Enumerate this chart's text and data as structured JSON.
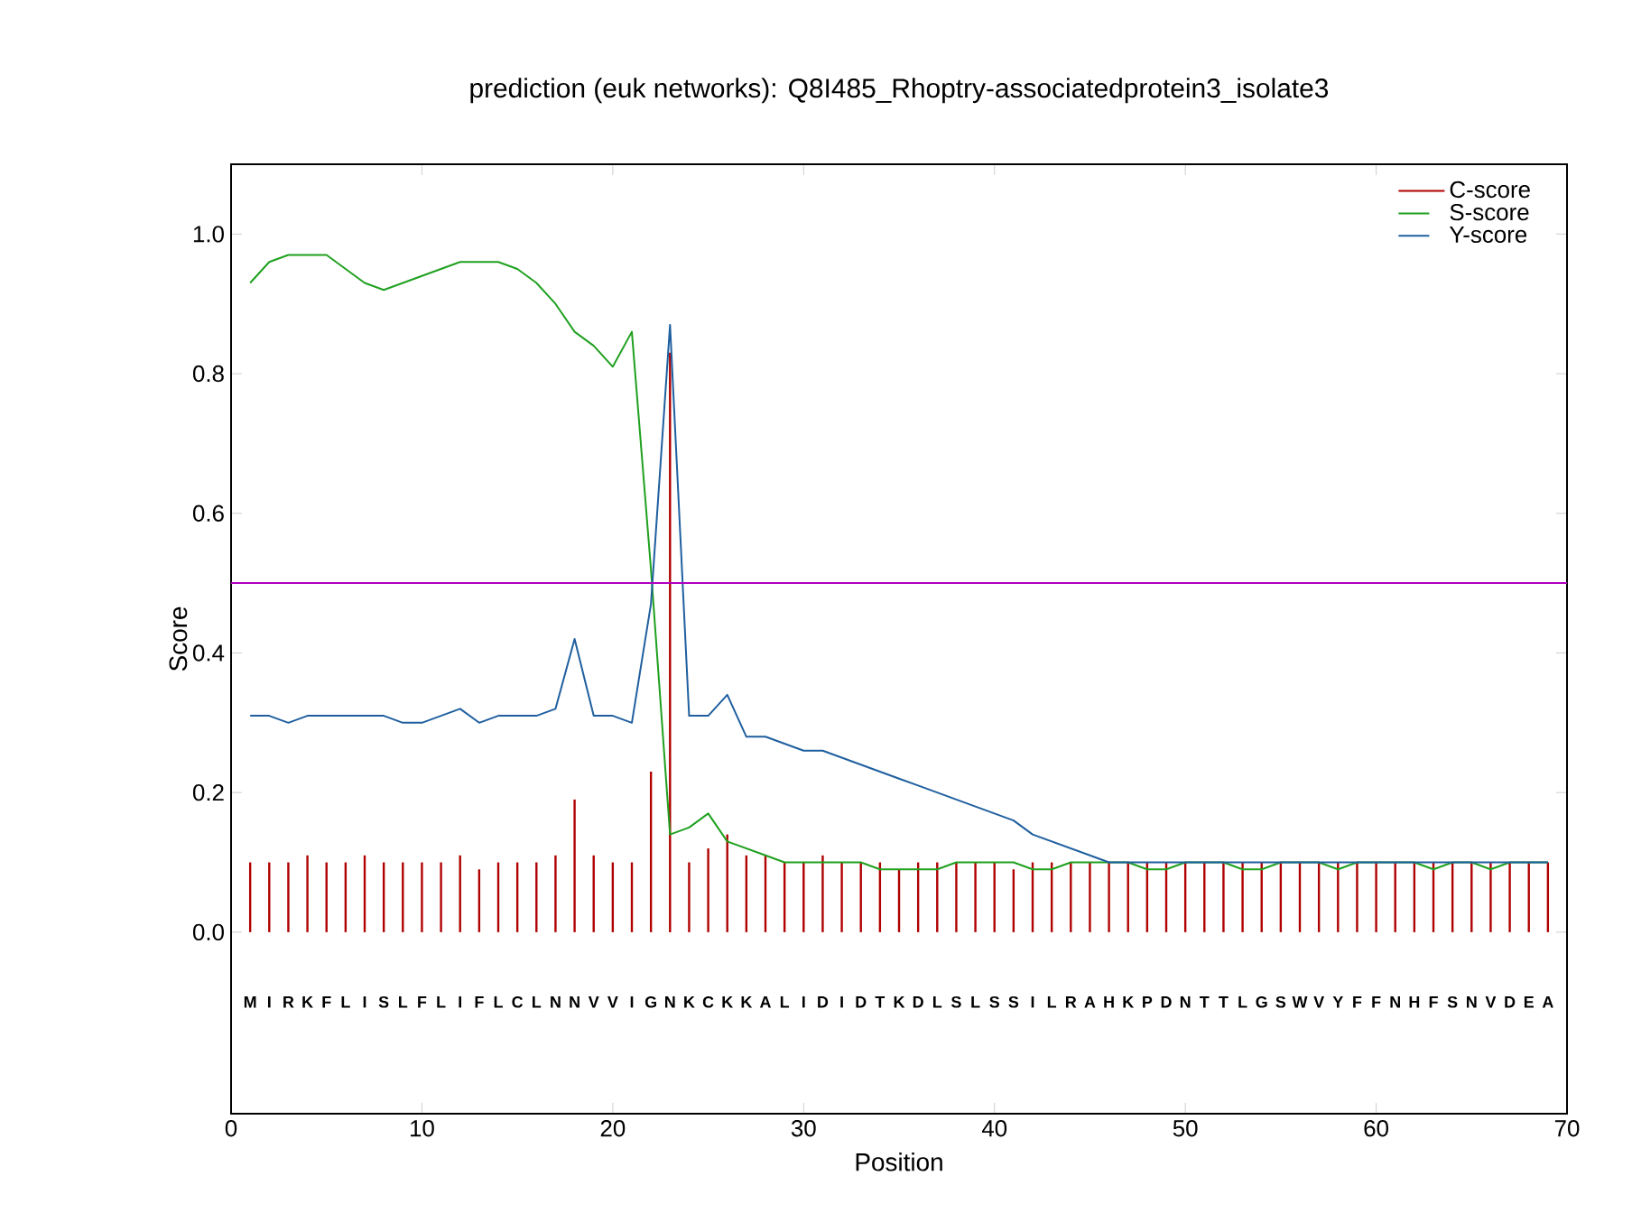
{
  "chart_data": {
    "type": "line",
    "title": "prediction (euk networks): Q8I485_Rhoptry-associatedprotein3_isolate3",
    "xlabel": "Position",
    "ylabel": "Score",
    "x": [
      1,
      2,
      3,
      4,
      5,
      6,
      7,
      8,
      9,
      10,
      11,
      12,
      13,
      14,
      15,
      16,
      17,
      18,
      19,
      20,
      21,
      22,
      23,
      24,
      25,
      26,
      27,
      28,
      29,
      30,
      31,
      32,
      33,
      34,
      35,
      36,
      37,
      38,
      39,
      40,
      41,
      42,
      43,
      44,
      45,
      46,
      47,
      48,
      49,
      50,
      51,
      52,
      53,
      54,
      55,
      56,
      57,
      58,
      59,
      60,
      61,
      62,
      63,
      64,
      65,
      66,
      67,
      68,
      69
    ],
    "series": [
      {
        "name": "C-score",
        "type": "bar",
        "color": "#b00000",
        "values": [
          0.1,
          0.1,
          0.1,
          0.11,
          0.1,
          0.1,
          0.11,
          0.1,
          0.1,
          0.1,
          0.1,
          0.11,
          0.09,
          0.1,
          0.1,
          0.1,
          0.11,
          0.19,
          0.11,
          0.1,
          0.1,
          0.23,
          0.83,
          0.1,
          0.12,
          0.14,
          0.11,
          0.11,
          0.1,
          0.1,
          0.11,
          0.1,
          0.1,
          0.1,
          0.09,
          0.1,
          0.1,
          0.1,
          0.1,
          0.1,
          0.09,
          0.1,
          0.1,
          0.1,
          0.1,
          0.1,
          0.1,
          0.1,
          0.1,
          0.1,
          0.1,
          0.1,
          0.1,
          0.1,
          0.1,
          0.1,
          0.1,
          0.1,
          0.1,
          0.1,
          0.1,
          0.1,
          0.1,
          0.1,
          0.1,
          0.1,
          0.1,
          0.1,
          0.1
        ]
      },
      {
        "name": "S-score",
        "color": "#1fa01f",
        "values": [
          0.93,
          0.96,
          0.97,
          0.97,
          0.97,
          0.95,
          0.93,
          0.92,
          0.93,
          0.94,
          0.95,
          0.96,
          0.96,
          0.96,
          0.95,
          0.93,
          0.9,
          0.86,
          0.84,
          0.81,
          0.86,
          0.52,
          0.14,
          0.15,
          0.17,
          0.13,
          0.12,
          0.11,
          0.1,
          0.1,
          0.1,
          0.1,
          0.1,
          0.09,
          0.09,
          0.09,
          0.09,
          0.1,
          0.1,
          0.1,
          0.1,
          0.09,
          0.09,
          0.1,
          0.1,
          0.1,
          0.1,
          0.09,
          0.09,
          0.1,
          0.1,
          0.1,
          0.09,
          0.09,
          0.1,
          0.1,
          0.1,
          0.09,
          0.1,
          0.1,
          0.1,
          0.1,
          0.09,
          0.1,
          0.1,
          0.09,
          0.1,
          0.1,
          0.1
        ]
      },
      {
        "name": "Y-score",
        "color": "#1f5f9f",
        "values": [
          0.31,
          0.31,
          0.3,
          0.31,
          0.31,
          0.31,
          0.31,
          0.31,
          0.3,
          0.3,
          0.31,
          0.32,
          0.3,
          0.31,
          0.31,
          0.31,
          0.32,
          0.42,
          0.31,
          0.31,
          0.3,
          0.47,
          0.87,
          0.31,
          0.31,
          0.34,
          0.28,
          0.28,
          0.27,
          0.26,
          0.26,
          0.25,
          0.24,
          0.23,
          0.22,
          0.21,
          0.2,
          0.19,
          0.18,
          0.17,
          0.16,
          0.14,
          0.13,
          0.12,
          0.11,
          0.1,
          0.1,
          0.1,
          0.1,
          0.1,
          0.1,
          0.1,
          0.1,
          0.1,
          0.1,
          0.1,
          0.1,
          0.1,
          0.1,
          0.1,
          0.1,
          0.1,
          0.1,
          0.1,
          0.1,
          0.1,
          0.1,
          0.1,
          0.1
        ]
      }
    ],
    "ref_lines": [
      {
        "axis": "y",
        "value": 0.5,
        "color": "#b000c0"
      }
    ],
    "xlim": [
      0,
      70
    ],
    "ylim": [
      -0.26,
      1.1
    ],
    "xticks": [
      0,
      10,
      20,
      30,
      40,
      50,
      60,
      70
    ],
    "yticks": [
      {
        "value": 0,
        "label": "0.0"
      },
      {
        "value": 0.2,
        "label": "0.2"
      },
      {
        "value": 0.4,
        "label": "0.4"
      },
      {
        "value": 0.6,
        "label": "0.6"
      },
      {
        "value": 0.8,
        "label": "0.8"
      },
      {
        "value": 1,
        "label": "1.0"
      }
    ],
    "legend": "top right",
    "line_style": "solid",
    "annotations": [
      "M",
      "I",
      "R",
      "K",
      "F",
      "L",
      "I",
      "S",
      "L",
      "F",
      "L",
      "I",
      "F",
      "L",
      "C",
      "L",
      "N",
      "N",
      "V",
      "V",
      "I",
      "G",
      "N",
      "K",
      "C",
      "K",
      "K",
      "A",
      "L",
      "I",
      "D",
      "I",
      "D",
      "T",
      "K",
      "D",
      "L",
      "S",
      "L",
      "S",
      "S",
      "I",
      "L",
      "R",
      "A",
      "H",
      "K",
      "P",
      "D",
      "N",
      "T",
      "T",
      "L",
      "G",
      "S",
      "W",
      "V",
      "Y",
      "F",
      "F",
      "N",
      "H",
      "F",
      "S",
      "N",
      "V",
      "D",
      "E",
      "A"
    ]
  }
}
